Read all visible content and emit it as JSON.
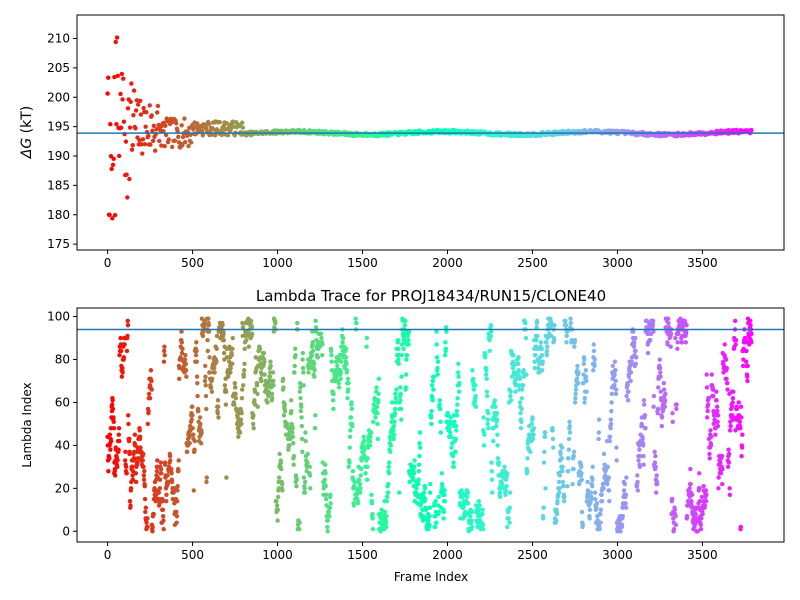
{
  "chart_data": [
    {
      "type": "scatter",
      "title": "",
      "xlabel": "",
      "ylabel": "ΔG (kT)",
      "ylabel_symbol": "ΔG",
      "ylabel_unit": " (kT)",
      "xlim": [
        -180,
        3980
      ],
      "ylim": [
        174,
        214
      ],
      "xticks": [
        0,
        500,
        1000,
        1500,
        2000,
        2500,
        3000,
        3500
      ],
      "yticks": [
        175,
        180,
        185,
        190,
        195,
        200,
        205,
        210
      ],
      "hline": 193.9,
      "hline_color": "#1f77b4",
      "colormap": "rainbow",
      "x_max_frame": 3790,
      "grid": false,
      "series_description": "Free-energy estimate per frame; large scatter (about 177-213 kT) in the first ~300 frames converging to about 193.9 kT after ~800 frames."
    },
    {
      "type": "scatter",
      "title": "Lambda Trace for PROJ18434/RUN15/CLONE40",
      "xlabel": "Frame Index",
      "ylabel": "Lambda Index",
      "xlim": [
        -180,
        3980
      ],
      "ylim": [
        -5,
        104
      ],
      "xticks": [
        0,
        500,
        1000,
        1500,
        2000,
        2500,
        3000,
        3500
      ],
      "yticks": [
        0,
        20,
        40,
        60,
        80,
        100
      ],
      "hline": 94,
      "hline_color": "#1f77b4",
      "colormap": "rainbow",
      "x_max_frame": 3790,
      "lambda_range": [
        0,
        99
      ],
      "grid": false,
      "series_description": "One lambda index (0-99) per frame, dense random-looking trace across all frames, colored by frame index (red early, violet late)."
    }
  ]
}
